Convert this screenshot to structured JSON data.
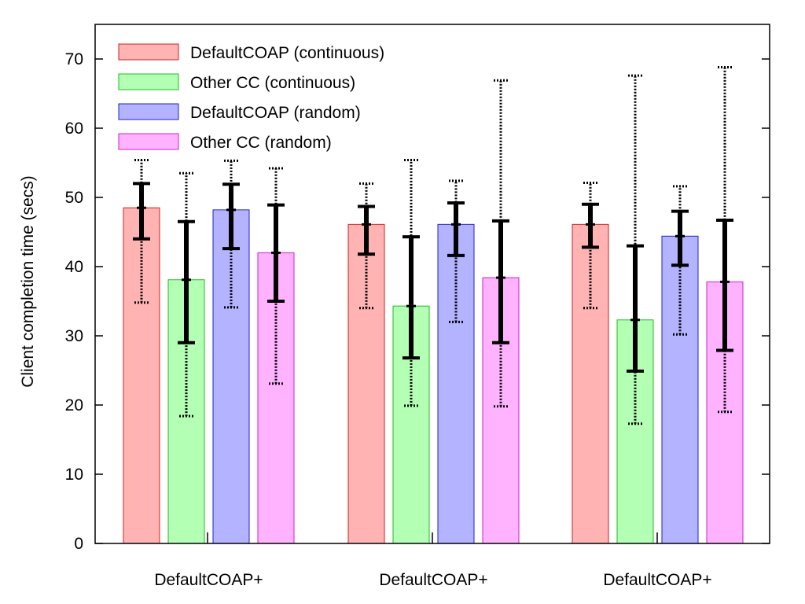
{
  "chart_data": {
    "type": "bar",
    "title": "",
    "xlabel": "",
    "ylabel": "Client completion time (secs)",
    "ylim": [
      0,
      75
    ],
    "yticks": [
      0,
      10,
      20,
      30,
      40,
      50,
      60,
      70
    ],
    "categories": [
      "DefaultCOAP+",
      "DefaultCOAP+",
      "DefaultCOAP+"
    ],
    "grid": false,
    "legend_position": "top-left",
    "series": [
      {
        "name": "DefaultCOAP (continuous)",
        "fill": "#ffb3b3",
        "stroke": "#cc2222",
        "values": [
          48.5,
          46.1,
          46.1
        ],
        "inner_error": [
          [
            44.0,
            52.0
          ],
          [
            41.8,
            48.7
          ],
          [
            42.8,
            49.0
          ]
        ],
        "outer_error": [
          [
            34.8,
            55.4
          ],
          [
            34.0,
            52.0
          ],
          [
            34.0,
            52.1
          ]
        ]
      },
      {
        "name": "Other CC (continuous)",
        "fill": "#b3ffb3",
        "stroke": "#22bb22",
        "values": [
          38.1,
          34.3,
          32.3
        ],
        "inner_error": [
          [
            29.0,
            46.5
          ],
          [
            26.8,
            44.3
          ],
          [
            24.9,
            43.0
          ]
        ],
        "outer_error": [
          [
            18.4,
            53.5
          ],
          [
            19.9,
            55.4
          ],
          [
            17.3,
            67.6
          ]
        ]
      },
      {
        "name": "DefaultCOAP (random)",
        "fill": "#b3b3ff",
        "stroke": "#2222cc",
        "values": [
          48.2,
          46.1,
          44.4
        ],
        "inner_error": [
          [
            42.6,
            51.9
          ],
          [
            41.6,
            49.2
          ],
          [
            40.2,
            48.0
          ]
        ],
        "outer_error": [
          [
            34.1,
            55.3
          ],
          [
            32.0,
            52.4
          ],
          [
            30.2,
            51.6
          ]
        ]
      },
      {
        "name": "Other CC (random)",
        "fill": "#ffb3ff",
        "stroke": "#cc22cc",
        "values": [
          42.0,
          38.4,
          37.8
        ],
        "inner_error": [
          [
            35.0,
            48.9
          ],
          [
            29.0,
            46.6
          ],
          [
            27.9,
            46.7
          ]
        ],
        "outer_error": [
          [
            23.1,
            54.2
          ],
          [
            19.8,
            66.9
          ],
          [
            19.0,
            68.8
          ]
        ]
      }
    ]
  }
}
